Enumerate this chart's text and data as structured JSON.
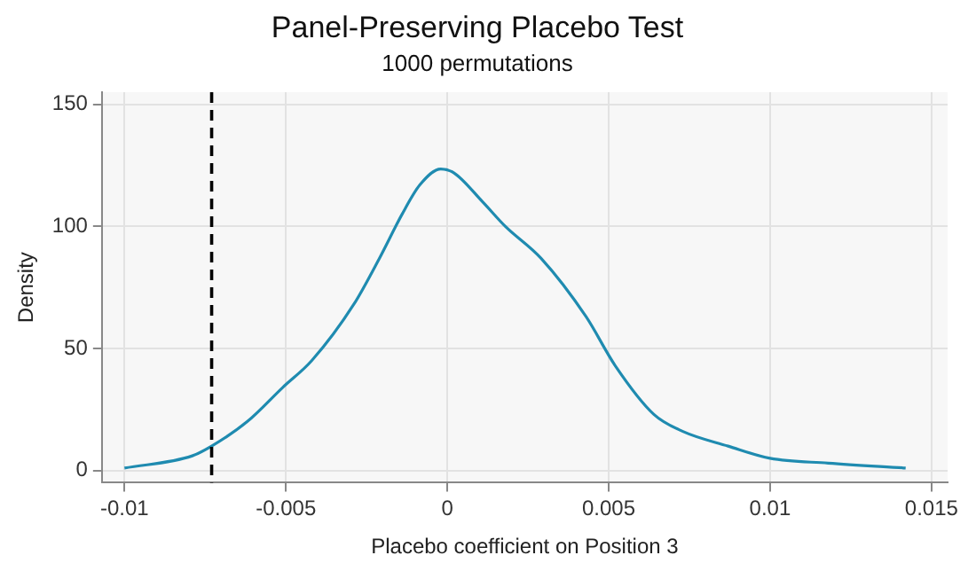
{
  "chart_data": {
    "type": "line",
    "title": "Panel-Preserving Placebo Test",
    "subtitle": "1000 permutations",
    "xlabel": "Placebo coefficient on Position 3",
    "ylabel": "Density",
    "x": [
      -0.01,
      -0.0079,
      -0.0073,
      -0.0062,
      -0.0051,
      -0.0042,
      -0.0029,
      -0.0021,
      -0.0014,
      -0.00085,
      -0.0002,
      0.0002,
      0.0011,
      0.0018,
      0.0029,
      0.0043,
      0.0052,
      0.0064,
      0.0073,
      0.0087,
      0.01,
      0.0118,
      0.0142
    ],
    "series": [
      {
        "color": "#1f8bb0",
        "values": [
          1,
          6,
          10,
          20,
          34,
          45,
          68,
          87,
          105,
          117,
          123.5,
          122,
          110,
          100,
          87,
          63,
          43,
          23,
          16,
          10,
          5,
          3,
          1
        ]
      }
    ],
    "xlim": [
      -0.0107,
      0.0155
    ],
    "xticks": [
      {
        "value": -0.01,
        "label": "-0.01"
      },
      {
        "value": -0.005,
        "label": "-0.005"
      },
      0,
      0.005,
      0.01,
      0.015
    ],
    "ylim": [
      -5,
      155
    ],
    "yticks": [
      0,
      50,
      100,
      150
    ],
    "grid": true,
    "legend": false,
    "marker": "none",
    "line_style": "solid",
    "ref_lines": [
      {
        "axis": "x",
        "value": -0.0073,
        "color": "#000000",
        "line_style": "dashed"
      }
    ]
  }
}
